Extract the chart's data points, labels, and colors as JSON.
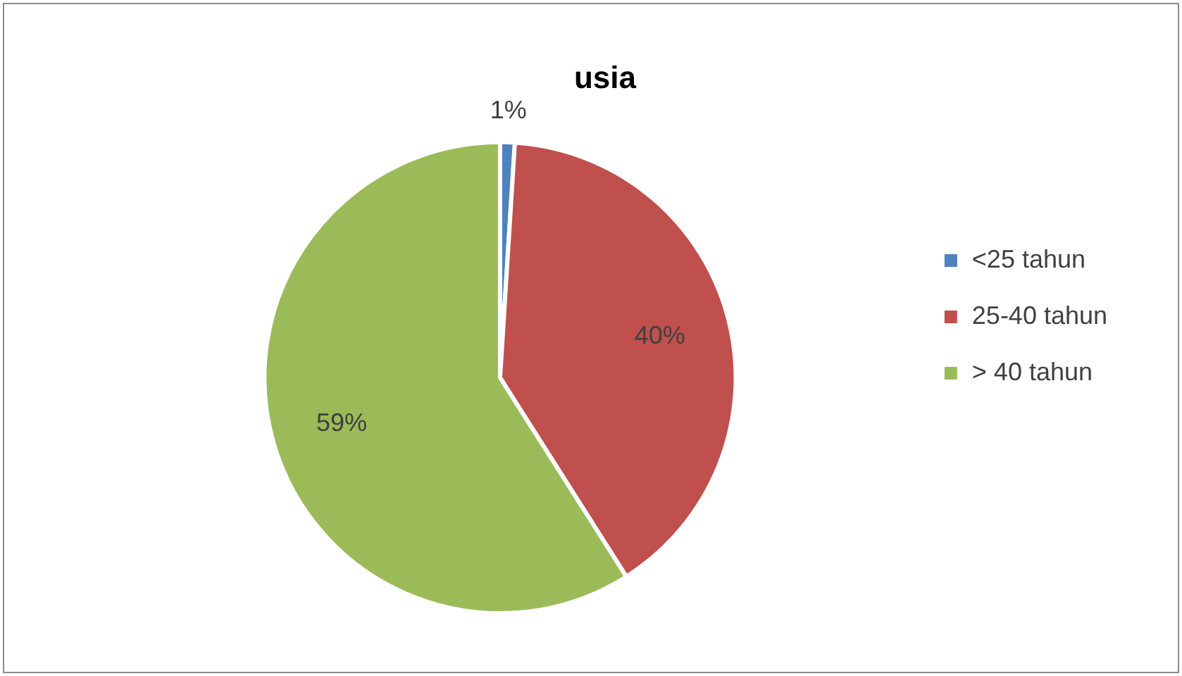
{
  "chart_data": {
    "type": "pie",
    "title": "usia",
    "categories": [
      "<25 tahun",
      "25-40 tahun",
      "> 40 tahun"
    ],
    "values": [
      1,
      40,
      59
    ],
    "colors": [
      "#4f81bd",
      "#c0504d",
      "#9bbb59"
    ],
    "value_labels": [
      "1%",
      "40%",
      "59%"
    ],
    "legend": "right"
  }
}
